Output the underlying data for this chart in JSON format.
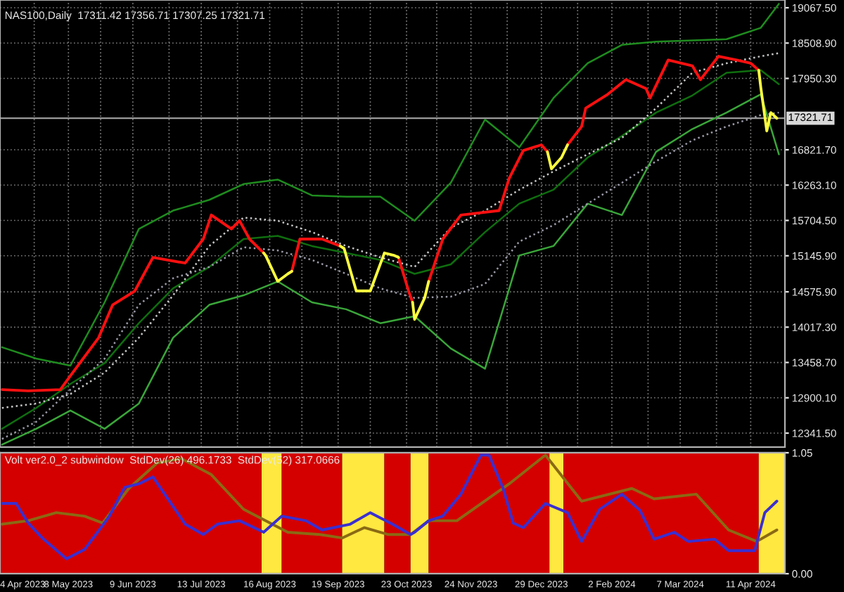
{
  "chart_data": [
    {
      "type": "line",
      "title": "NAS100,Daily  17311.42 17356.71 17307.25 17321.71",
      "x": [
        "2023-04-05",
        "2023-04-22",
        "2023-05-09",
        "2023-05-26",
        "2023-06-12",
        "2023-06-29",
        "2023-07-17",
        "2023-08-03",
        "2023-08-20",
        "2023-09-06",
        "2023-09-23",
        "2023-10-10",
        "2023-10-27",
        "2023-11-14",
        "2023-12-01",
        "2023-12-18",
        "2024-01-04",
        "2024-01-21",
        "2024-02-07",
        "2024-02-24",
        "2024-03-13",
        "2024-03-30",
        "2024-04-16",
        "2024-04-25"
      ],
      "series": [
        {
          "color": "#1f8c1f",
          "line_style": "solid",
          "values": [
            13700,
            13520,
            13410,
            14410,
            15570,
            15860,
            16030,
            16280,
            16350,
            16100,
            16080,
            16080,
            15700,
            16300,
            17300,
            16860,
            17640,
            18190,
            18480,
            18530,
            18550,
            18570,
            18750,
            19130
          ]
        },
        {
          "color": "#3aa63a",
          "line_style": "solid",
          "values": [
            12160,
            12410,
            12700,
            12410,
            12810,
            13850,
            14370,
            14520,
            14740,
            14410,
            14300,
            14080,
            14190,
            13680,
            13360,
            15150,
            15300,
            15970,
            15790,
            16790,
            17150,
            17410,
            17700,
            16750
          ]
        },
        {
          "color": "#0f6e0f",
          "line_style": "solid",
          "values": [
            12410,
            12740,
            13120,
            13450,
            14080,
            14630,
            14970,
            15410,
            15460,
            15300,
            15190,
            15080,
            14860,
            15010,
            15520,
            15970,
            16190,
            16700,
            17040,
            17410,
            17680,
            18040,
            18080,
            17860
          ]
        },
        {
          "color": "#c8c8c8",
          "line_style": "dotted",
          "values": [
            12740,
            12810,
            12960,
            13300,
            13850,
            14520,
            15300,
            15750,
            15700,
            15520,
            15300,
            15120,
            14970,
            15590,
            15860,
            16190,
            16480,
            16750,
            17010,
            17480,
            18040,
            18190,
            18300,
            18350
          ]
        },
        {
          "color": "#9a9aa8",
          "line_style": "dotted",
          "values": [
            12250,
            12520,
            13030,
            13520,
            14370,
            14790,
            14970,
            15280,
            15230,
            15080,
            14860,
            14630,
            14480,
            14500,
            14700,
            15370,
            15630,
            15970,
            16300,
            16640,
            16970,
            17190,
            17370,
            17410
          ]
        },
        {
          "color": "#ff1010",
          "line_style": "solid",
          "x": [
            "2023-04-05",
            "2023-04-18",
            "2023-05-04",
            "2023-05-09",
            "2023-05-23",
            "2023-05-30",
            "2023-06-10",
            "2023-06-19",
            "2023-07-05",
            "2023-07-14",
            "2023-07-18",
            "2023-07-28",
            "2023-08-01",
            "2023-08-06",
            "2023-08-13",
            "2023-08-20",
            "2023-08-27",
            "2023-08-31",
            "2023-09-11",
            "2023-09-20",
            "2023-10-01",
            "2023-10-19",
            "2023-10-24",
            "2023-10-26",
            "2023-10-30",
            "2023-11-03",
            "2023-11-10",
            "2023-11-19",
            "2023-12-08",
            "2023-12-13",
            "2023-12-20",
            "2023-12-29",
            "2024-01-01",
            "2024-01-05",
            "2024-01-11",
            "2024-01-18",
            "2024-01-20",
            "2024-01-31",
            "2024-02-09",
            "2024-02-19",
            "2024-02-21",
            "2024-03-01",
            "2024-03-13",
            "2024-03-17",
            "2024-03-26",
            "2024-04-04",
            "2024-04-11",
            "2024-04-15"
          ],
          "values": [
            13030,
            13010,
            13030,
            13250,
            13850,
            14370,
            14590,
            15120,
            15030,
            15410,
            15790,
            15570,
            15700,
            15410,
            15190,
            null,
            14900,
            15410,
            15410,
            15300,
            null,
            15120,
            14590,
            14410,
            null,
            14740,
            15410,
            15790,
            15860,
            16370,
            16810,
            16900,
            16790,
            null,
            16900,
            17190,
            17480,
            17700,
            17930,
            17790,
            17640,
            18240,
            18150,
            17930,
            18300,
            18240,
            18190,
            18080
          ]
        },
        {
          "color": "#ffff40",
          "line_style": "solid",
          "x": [
            "2023-08-13",
            "2023-08-14",
            "2023-08-20",
            "2023-08-25",
            "2023-08-27",
            "2023-09-05",
            "2023-09-20",
            "2023-09-22",
            "2023-09-28",
            "2023-10-05",
            "2023-10-12",
            "2023-10-17",
            "2023-10-19",
            "2023-10-22",
            "2023-10-26",
            "2023-10-27",
            "2023-11-01",
            "2023-11-03",
            "2023-12-10",
            "2024-01-01",
            "2024-01-03",
            "2024-01-08",
            "2024-01-11",
            "2024-03-01",
            "2024-04-15",
            "2024-04-16",
            "2024-04-19",
            "2024-04-21",
            "2024-04-24"
          ],
          "values": [
            15190,
            15150,
            14740,
            14860,
            14900,
            null,
            15300,
            15260,
            14590,
            14590,
            15190,
            15150,
            15120,
            null,
            14410,
            14140,
            14480,
            14740,
            null,
            16790,
            16520,
            16700,
            16900,
            null,
            18080,
            17810,
            17120,
            17410,
            17320
          ]
        }
      ],
      "ref_lines": [
        {
          "axis": "y",
          "value": 17321.71,
          "label": "17321.71",
          "color": "#9a9a9a"
        }
      ],
      "xlim": [
        "2023-04-04",
        "2024-04-28"
      ],
      "ylim": [
        12120,
        19190
      ],
      "xticks": [
        {
          "value": "2023-04-04",
          "label": null
        },
        {
          "value": "2023-04-21",
          "label": null
        },
        {
          "value": "2023-05-08",
          "label": null
        },
        {
          "value": "2023-05-24",
          "label": null
        },
        {
          "value": "2023-06-09",
          "label": null
        },
        {
          "value": "2023-06-27",
          "label": null
        },
        {
          "value": "2023-07-13",
          "label": null
        },
        {
          "value": "2023-07-31",
          "label": null
        },
        {
          "value": "2023-08-16",
          "label": null
        },
        {
          "value": "2023-09-01",
          "label": null
        },
        {
          "value": "2023-09-19",
          "label": null
        },
        {
          "value": "2023-10-05",
          "label": null
        },
        {
          "value": "2023-10-23",
          "label": null
        },
        {
          "value": "2023-11-07",
          "label": null
        },
        {
          "value": "2023-11-24",
          "label": null
        },
        {
          "value": "2023-12-12",
          "label": null
        },
        {
          "value": "2023-12-29",
          "label": null
        },
        {
          "value": "2024-01-16",
          "label": null
        },
        {
          "value": "2024-02-02",
          "label": null
        },
        {
          "value": "2024-02-20",
          "label": null
        },
        {
          "value": "2024-03-07",
          "label": null
        },
        {
          "value": "2024-03-25",
          "label": null
        },
        {
          "value": "2024-04-11",
          "label": null
        }
      ],
      "yticks": [
        {
          "value": 12341.5,
          "label": "12341.50"
        },
        {
          "value": 12900.1,
          "label": "12900.10"
        },
        {
          "value": 13458.7,
          "label": "13458.70"
        },
        {
          "value": 14017.3,
          "label": "14017.30"
        },
        {
          "value": 14575.9,
          "label": "14575.90"
        },
        {
          "value": 15145.9,
          "label": "15145.90"
        },
        {
          "value": 15704.5,
          "label": "15704.50"
        },
        {
          "value": 16263.1,
          "label": "16263.10"
        },
        {
          "value": 16821.7,
          "label": "16821.70"
        },
        {
          "value": 17950.3,
          "label": "17950.30"
        },
        {
          "value": 18508.9,
          "label": "18508.90"
        },
        {
          "value": 19067.5,
          "label": "19067.50"
        }
      ],
      "grid": true,
      "tick_labels": "y"
    },
    {
      "type": "line",
      "title": "Volt ver2.0_2 subwindow  StdDev(26) 496.1733  StdDev(52) 317.0666",
      "series": [
        {
          "color": "#8a6a14",
          "line_style": "solid",
          "x": [
            "2023-04-05",
            "2023-04-18",
            "2023-05-02",
            "2023-05-16",
            "2023-05-25",
            "2023-06-07",
            "2023-06-21",
            "2023-07-03",
            "2023-07-18",
            "2023-08-03",
            "2023-08-25",
            "2023-09-10",
            "2023-09-21",
            "2023-10-02",
            "2023-10-14",
            "2023-10-25",
            "2023-11-03",
            "2023-11-17",
            "2023-12-13",
            "2023-12-31",
            "2024-01-18",
            "2024-02-12",
            "2024-02-23",
            "2024-03-15",
            "2024-03-31",
            "2024-04-14",
            "2024-04-24"
          ],
          "values": [
            0.43,
            0.46,
            0.53,
            0.5,
            0.44,
            0.74,
            0.96,
            1.0,
            0.86,
            0.56,
            0.36,
            0.34,
            0.31,
            0.4,
            0.34,
            0.34,
            0.46,
            0.46,
            0.78,
            1.03,
            0.63,
            0.74,
            0.65,
            0.69,
            0.38,
            0.28,
            0.38
          ]
        },
        {
          "color": "#3a2fd0",
          "line_style": "solid",
          "x": [
            "2023-04-05",
            "2023-04-12",
            "2023-04-18",
            "2023-04-25",
            "2023-05-07",
            "2023-05-16",
            "2023-05-28",
            "2023-06-05",
            "2023-06-12",
            "2023-06-19",
            "2023-06-28",
            "2023-07-05",
            "2023-07-14",
            "2023-07-21",
            "2023-08-01",
            "2023-08-13",
            "2023-08-22",
            "2023-09-03",
            "2023-09-11",
            "2023-09-25",
            "2023-10-05",
            "2023-10-16",
            "2023-10-25",
            "2023-10-27",
            "2023-11-03",
            "2023-11-10",
            "2023-11-19",
            "2023-11-29",
            "2023-12-03",
            "2023-12-10",
            "2023-12-15",
            "2023-12-20",
            "2023-12-31",
            "2024-01-11",
            "2024-01-18",
            "2024-01-27",
            "2024-02-07",
            "2024-02-16",
            "2024-02-23",
            "2024-03-04",
            "2024-03-11",
            "2024-03-24",
            "2024-03-31",
            "2024-04-13",
            "2024-04-18",
            "2024-04-24"
          ],
          "values": [
            0.61,
            0.61,
            0.44,
            0.31,
            0.13,
            0.21,
            0.49,
            0.75,
            0.78,
            0.84,
            0.61,
            0.43,
            0.34,
            0.43,
            0.46,
            0.36,
            0.5,
            0.46,
            0.38,
            0.43,
            0.53,
            0.43,
            0.34,
            0.36,
            0.46,
            0.5,
            0.69,
            1.03,
            1.03,
            0.74,
            0.44,
            0.4,
            0.61,
            0.53,
            0.28,
            0.56,
            0.69,
            0.55,
            0.3,
            0.36,
            0.28,
            0.3,
            0.2,
            0.2,
            0.53,
            0.63
          ]
        }
      ],
      "bands": [
        {
          "axis": "x",
          "from": "2023-04-04",
          "to": "2023-08-12",
          "color": "#d40000"
        },
        {
          "axis": "x",
          "from": "2023-08-12",
          "to": "2023-08-22",
          "color": "#ffe840"
        },
        {
          "axis": "x",
          "from": "2023-08-22",
          "to": "2023-09-21",
          "color": "#d40000"
        },
        {
          "axis": "x",
          "from": "2023-09-21",
          "to": "2023-10-12",
          "color": "#ffe840"
        },
        {
          "axis": "x",
          "from": "2023-10-12",
          "to": "2023-10-25",
          "color": "#d40000"
        },
        {
          "axis": "x",
          "from": "2023-10-25",
          "to": "2023-11-03",
          "color": "#ffe840"
        },
        {
          "axis": "x",
          "from": "2023-11-03",
          "to": "2024-01-02",
          "color": "#d40000"
        },
        {
          "axis": "x",
          "from": "2024-01-02",
          "to": "2024-01-09",
          "color": "#ffe840"
        },
        {
          "axis": "x",
          "from": "2024-01-09",
          "to": "2024-04-15",
          "color": "#d40000"
        },
        {
          "axis": "x",
          "from": "2024-04-15",
          "to": "2024-04-28",
          "color": "#ffe840"
        }
      ],
      "xlim": [
        "2023-04-04",
        "2024-04-28"
      ],
      "ylim": [
        0,
        1.05
      ],
      "xticks": [
        {
          "value": "2023-04-04",
          "label": "4 Apr 2023"
        },
        {
          "value": "2023-05-08",
          "label": "8 May 2023"
        },
        {
          "value": "2023-06-09",
          "label": "9 Jun 2023"
        },
        {
          "value": "2023-07-13",
          "label": "13 Jul 2023"
        },
        {
          "value": "2023-08-16",
          "label": "16 Aug 2023"
        },
        {
          "value": "2023-09-19",
          "label": "19 Sep 2023"
        },
        {
          "value": "2023-10-23",
          "label": "23 Oct 2023"
        },
        {
          "value": "2023-11-24",
          "label": "24 Nov 2023"
        },
        {
          "value": "2023-12-29",
          "label": "29 Dec 2023"
        },
        {
          "value": "2024-02-02",
          "label": "2 Feb 2024"
        },
        {
          "value": "2024-03-07",
          "label": "7 Mar 2024"
        },
        {
          "value": "2024-04-11",
          "label": "11 Apr 2024"
        }
      ],
      "yticks": [
        {
          "value": 0,
          "label": "0.00"
        },
        1.05
      ]
    }
  ]
}
